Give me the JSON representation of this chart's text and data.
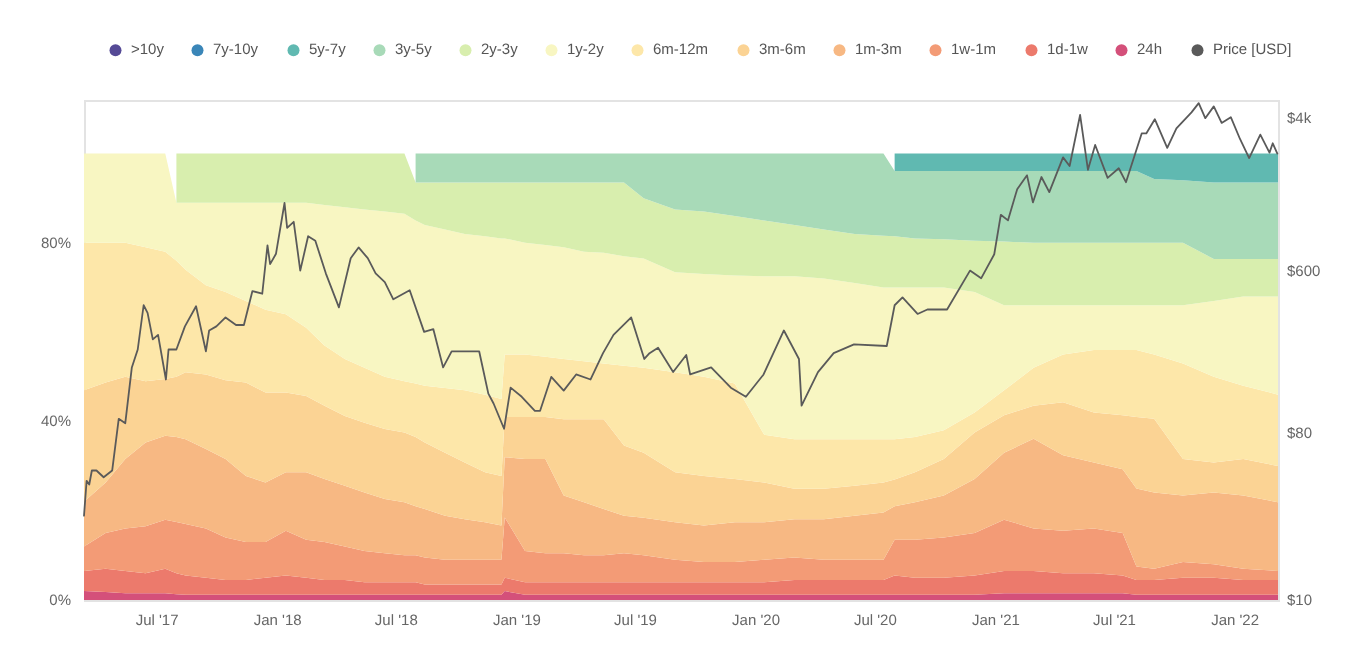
{
  "chart_data": {
    "type": "area",
    "stacked": true,
    "legend": "top",
    "log": "y2",
    "x": [
      "2017-03-13",
      "2017-04-15",
      "2017-05-15",
      "2017-06-15",
      "2017-07-15",
      "2017-08-01",
      "2017-08-15",
      "2017-09-15",
      "2017-10-15",
      "2017-11-15",
      "2017-12-15",
      "2018-01-15",
      "2018-02-15",
      "2018-03-15",
      "2018-04-15",
      "2018-05-15",
      "2018-06-15",
      "2018-07-15",
      "2018-08-01",
      "2018-08-15",
      "2018-09-15",
      "2018-10-15",
      "2018-11-15",
      "2018-12-10",
      "2018-12-15",
      "2019-01-15",
      "2019-02-15",
      "2019-03-15",
      "2019-04-15",
      "2019-05-15",
      "2019-06-15",
      "2019-07-15",
      "2019-09-01",
      "2019-10-15",
      "2019-12-01",
      "2020-01-15",
      "2020-03-01",
      "2020-04-15",
      "2020-06-01",
      "2020-07-15",
      "2020-08-01",
      "2020-09-01",
      "2020-10-15",
      "2020-12-01",
      "2021-01-15",
      "2021-03-01",
      "2021-04-15",
      "2021-06-01",
      "2021-07-15",
      "2021-08-05",
      "2021-09-01",
      "2021-10-15",
      "2021-12-01",
      "2022-01-15",
      "2022-03-09"
    ],
    "xlim": [
      "2017-03-13",
      "2022-03-09"
    ],
    "xticks": [
      {
        "value": "2017-07-01",
        "label": "Jul '17"
      },
      {
        "value": "2018-01-01",
        "label": "Jan '18"
      },
      {
        "value": "2018-07-01",
        "label": "Jul '18"
      },
      {
        "value": "2019-01-01",
        "label": "Jan '19"
      },
      {
        "value": "2019-07-01",
        "label": "Jul '19"
      },
      {
        "value": "2020-01-01",
        "label": "Jan '20"
      },
      {
        "value": "2020-07-01",
        "label": "Jul '20"
      },
      {
        "value": "2021-01-01",
        "label": "Jan '21"
      },
      {
        "value": "2021-07-01",
        "label": "Jul '21"
      },
      {
        "value": "2022-01-01",
        "label": "Jan '22"
      }
    ],
    "ylim": [
      0,
      112
    ],
    "yticks": [
      {
        "value": 0,
        "label": "0%"
      },
      {
        "value": 40,
        "label": "40%"
      },
      {
        "value": 80,
        "label": "80%"
      }
    ],
    "y2lim": [
      10,
      5000
    ],
    "y2ticks": [
      {
        "value": 10,
        "label": "$10"
      },
      {
        "value": 80,
        "label": "$80"
      },
      {
        "value": 600,
        "label": "$600"
      },
      {
        "value": 4000,
        "label": "$4k"
      }
    ],
    "series": [
      {
        "name": "24h",
        "color": "#d4507a",
        "values": [
          2,
          1.8,
          1.5,
          1.5,
          1.5,
          1.3,
          1.2,
          1.2,
          1.2,
          1.2,
          1.2,
          1.2,
          1.2,
          1.2,
          1.2,
          1.2,
          1.2,
          1.2,
          1.2,
          1.2,
          1.2,
          1.2,
          1.2,
          1.2,
          2,
          1.2,
          1.2,
          1.2,
          1.2,
          1.2,
          1.2,
          1.2,
          1.2,
          1.2,
          1.2,
          1.2,
          1.2,
          1.2,
          1.2,
          1.2,
          1.2,
          1.2,
          1.2,
          1.2,
          1.5,
          1.5,
          1.5,
          1.5,
          1.5,
          1.2,
          1.2,
          1.2,
          1.2,
          1.2,
          1.2
        ]
      },
      {
        "name": "1d-1w",
        "color": "#ec7a6c",
        "values": [
          4.5,
          5.2,
          5,
          4.5,
          5.5,
          4.7,
          4.3,
          3.8,
          3.3,
          3.3,
          3.8,
          4.3,
          3.8,
          3.3,
          3.3,
          2.8,
          2.8,
          2.8,
          2.8,
          2.3,
          2.3,
          2.3,
          2.3,
          2.3,
          3,
          2.8,
          2.8,
          2.8,
          2.8,
          2.8,
          2.8,
          2.8,
          2.8,
          2.8,
          2.8,
          2.8,
          3.3,
          3.3,
          3.3,
          3.3,
          4.3,
          3.8,
          3.8,
          4.3,
          5,
          5,
          4.5,
          4.5,
          4,
          3.3,
          3.3,
          3.8,
          3.8,
          3.3,
          3.3
        ]
      },
      {
        "name": "1w-1m",
        "color": "#f39b76",
        "values": [
          5.5,
          8,
          9.5,
          10.5,
          11,
          11.5,
          11.5,
          11,
          9.5,
          8.5,
          8,
          10,
          8.5,
          8.5,
          7.5,
          7,
          6.5,
          6,
          6,
          6,
          5.5,
          5.5,
          5.5,
          5.5,
          13.5,
          7,
          6.5,
          6.5,
          6,
          6,
          6.5,
          6,
          5,
          4.5,
          4.5,
          5,
          5,
          4.5,
          4.5,
          4.5,
          8,
          8.5,
          9,
          9.5,
          11.5,
          9.5,
          9.5,
          10,
          9.5,
          3,
          2.5,
          3.5,
          3,
          2.5,
          2
        ]
      },
      {
        "name": "1m-3m",
        "color": "#f7b883",
        "values": [
          10,
          11.3,
          15.6,
          18.8,
          18.8,
          19,
          19,
          17.8,
          17.6,
          14.8,
          13.3,
          13.1,
          15.1,
          14.1,
          13.6,
          13.1,
          12.1,
          11.9,
          11,
          10.9,
          9.9,
          9.1,
          8.4,
          7.7,
          13.5,
          20.6,
          21.1,
          12.9,
          11.9,
          10.4,
          8.4,
          8.4,
          8.4,
          8.2,
          8.9,
          8.4,
          8.6,
          9.1,
          9.9,
          10.6,
          7.5,
          8.4,
          9.4,
          12.1,
          15,
          20.1,
          16.9,
          14.8,
          14.3,
          17.5,
          17.1,
          14.9,
          16.1,
          16.4,
          15.4
        ]
      },
      {
        "name": "3m-6m",
        "color": "#fbd394",
        "values": [
          25,
          22.4,
          18.4,
          13.7,
          12.7,
          13.5,
          15,
          16.7,
          17.6,
          20.9,
          20.2,
          17.9,
          17.1,
          16.4,
          15.6,
          15.6,
          15.7,
          15.6,
          15.5,
          14.9,
          14.1,
          12.7,
          11.2,
          11.1,
          9,
          9.4,
          9.4,
          17.1,
          18.6,
          20.1,
          15.7,
          14.6,
          11.2,
          11.1,
          9.7,
          8.9,
          6.8,
          6.8,
          6.7,
          6.7,
          6,
          6.7,
          8.2,
          10.4,
          8.4,
          7.4,
          11.9,
          11.2,
          12.1,
          16,
          16.5,
          8.2,
          6.7,
          8.2,
          8.1
        ]
      },
      {
        "name": "6m-12m",
        "color": "#fde7a9",
        "values": [
          33,
          31.3,
          30,
          30,
          28.5,
          26,
          23,
          20,
          19.8,
          18.3,
          18.5,
          17.5,
          15.3,
          13.5,
          12.8,
          12.3,
          11.7,
          11.5,
          12,
          12.7,
          14.5,
          16.2,
          17.4,
          17.2,
          14,
          14,
          13.5,
          13.5,
          13,
          12.5,
          17.9,
          19,
          22.4,
          22.2,
          21.4,
          10.7,
          11.1,
          11.1,
          10.4,
          9.7,
          9,
          7.9,
          6.4,
          4.5,
          5.6,
          8.5,
          10.7,
          14,
          14.6,
          15,
          14.4,
          21.4,
          19.2,
          16.4,
          16
        ]
      },
      {
        "name": "1y-2y",
        "color": "#f8f6c2",
        "values": [
          20,
          20,
          20,
          21,
          22,
          13,
          15,
          18.5,
          20,
          22,
          24,
          25,
          28,
          31.5,
          34,
          35.5,
          37,
          37.5,
          36.5,
          36,
          35.5,
          35,
          35.5,
          36,
          26,
          25,
          25,
          25,
          24.5,
          24.8,
          24.5,
          24.5,
          22.4,
          23,
          24.2,
          35.5,
          36.5,
          36,
          35,
          34,
          34,
          33.5,
          32,
          27,
          19,
          14,
          11,
          10,
          10,
          10,
          11,
          13,
          17,
          20,
          22
        ]
      },
      {
        "name": "2y-3y",
        "color": "#d8eeae",
        "values": [
          null,
          null,
          null,
          null,
          null,
          11,
          11,
          11,
          11,
          11,
          11,
          11,
          11,
          11.5,
          12,
          12.5,
          13,
          13.5,
          8.5,
          9.5,
          10.5,
          11.5,
          12,
          12.5,
          12.5,
          13.5,
          14,
          14.5,
          15.5,
          15.7,
          16.5,
          13.5,
          14.1,
          14,
          13.3,
          12.5,
          11.5,
          11,
          11,
          11.6,
          11.5,
          11,
          10.8,
          11.5,
          14.3,
          14,
          14,
          14,
          14,
          14,
          14,
          14,
          9.4,
          8.4,
          8.4
        ]
      },
      {
        "name": "3y-5y",
        "color": "#a8dab8",
        "values": [
          null,
          null,
          null,
          null,
          null,
          null,
          null,
          null,
          null,
          null,
          null,
          null,
          null,
          null,
          null,
          null,
          null,
          null,
          6.5,
          6.5,
          6.5,
          6.5,
          6.5,
          6.5,
          6.5,
          6.5,
          6.5,
          6.5,
          6.5,
          6.5,
          6.5,
          10,
          12.5,
          13,
          14,
          15,
          16,
          17,
          18,
          18.4,
          14.6,
          15.1,
          15.3,
          15.6,
          15.8,
          16.1,
          16.1,
          16.1,
          16.1,
          16.1,
          14.3,
          14,
          17.1,
          17.1,
          17.1
        ]
      },
      {
        "name": "5y-7y",
        "color": "#60b9b1",
        "values": [
          null,
          null,
          null,
          null,
          null,
          null,
          null,
          null,
          null,
          null,
          null,
          null,
          null,
          null,
          null,
          null,
          null,
          null,
          null,
          null,
          null,
          null,
          null,
          null,
          null,
          null,
          null,
          null,
          null,
          null,
          null,
          null,
          null,
          null,
          null,
          null,
          null,
          null,
          null,
          null,
          3.9,
          3.9,
          3.9,
          3.9,
          3.9,
          3.9,
          3.9,
          3.9,
          3.9,
          3.9,
          5.7,
          6,
          6.5,
          6.5,
          6.5
        ]
      },
      {
        "name": "7y-10y",
        "color": "#3a86b8",
        "values": [
          null,
          null,
          null,
          null,
          null,
          null,
          null,
          null,
          null,
          null,
          null,
          null,
          null,
          null,
          null,
          null,
          null,
          null,
          null,
          null,
          null,
          null,
          null,
          null,
          null,
          null,
          null,
          null,
          null,
          null,
          null,
          null,
          null,
          null,
          null,
          null,
          null,
          null,
          null,
          null,
          null,
          null,
          null,
          null,
          null,
          null,
          null,
          null,
          null,
          null,
          null,
          null,
          null,
          null,
          null
        ]
      },
      {
        "name": ">10y",
        "color": "#554a96",
        "values": [
          null,
          null,
          null,
          null,
          null,
          null,
          null,
          null,
          null,
          null,
          null,
          null,
          null,
          null,
          null,
          null,
          null,
          null,
          null,
          null,
          null,
          null,
          null,
          null,
          null,
          null,
          null,
          null,
          null,
          null,
          null,
          null,
          null,
          null,
          null,
          null,
          null,
          null,
          null,
          null,
          null,
          null,
          null,
          null,
          null,
          null,
          null,
          null,
          null,
          null,
          null,
          null,
          null,
          null,
          null
        ]
      },
      {
        "name": "Price [USD]",
        "type": "line",
        "axis": "y2",
        "color": "#5a5a5a",
        "x": [
          "2017-03-13",
          "2017-03-17",
          "2017-03-21",
          "2017-03-25",
          "2017-04-01",
          "2017-04-12",
          "2017-04-25",
          "2017-05-05",
          "2017-05-15",
          "2017-05-25",
          "2017-06-03",
          "2017-06-12",
          "2017-06-18",
          "2017-06-26",
          "2017-07-04",
          "2017-07-16",
          "2017-07-20",
          "2017-08-01",
          "2017-08-14",
          "2017-08-31",
          "2017-09-15",
          "2017-09-20",
          "2017-10-01",
          "2017-10-15",
          "2017-10-31",
          "2017-11-12",
          "2017-11-25",
          "2017-12-10",
          "2017-12-18",
          "2017-12-22",
          "2017-12-31",
          "2018-01-13",
          "2018-01-17",
          "2018-01-27",
          "2018-02-06",
          "2018-02-18",
          "2018-03-01",
          "2018-03-17",
          "2018-04-06",
          "2018-04-24",
          "2018-05-06",
          "2018-05-20",
          "2018-06-01",
          "2018-06-15",
          "2018-06-28",
          "2018-07-23",
          "2018-08-14",
          "2018-08-28",
          "2018-09-12",
          "2018-09-25",
          "2018-10-15",
          "2018-11-06",
          "2018-11-20",
          "2018-11-28",
          "2018-12-14",
          "2018-12-24",
          "2019-01-10",
          "2019-01-30",
          "2019-02-07",
          "2019-02-24",
          "2019-03-15",
          "2019-04-03",
          "2019-04-25",
          "2019-05-14",
          "2019-05-30",
          "2019-06-26",
          "2019-07-16",
          "2019-07-24",
          "2019-08-06",
          "2019-08-29",
          "2019-09-18",
          "2019-09-24",
          "2019-10-26",
          "2019-11-25",
          "2019-12-18",
          "2020-01-14",
          "2020-02-14",
          "2020-03-08",
          "2020-03-12",
          "2020-04-06",
          "2020-04-30",
          "2020-05-31",
          "2020-07-20",
          "2020-08-01",
          "2020-08-13",
          "2020-09-05",
          "2020-09-20",
          "2020-10-20",
          "2020-11-24",
          "2020-12-11",
          "2020-12-31",
          "2021-01-10",
          "2021-01-21",
          "2021-02-04",
          "2021-02-19",
          "2021-02-28",
          "2021-03-13",
          "2021-03-25",
          "2021-04-15",
          "2021-04-25",
          "2021-05-11",
          "2021-05-23",
          "2021-06-03",
          "2021-06-22",
          "2021-07-09",
          "2021-07-20",
          "2021-08-13",
          "2021-08-20",
          "2021-09-02",
          "2021-09-21",
          "2021-10-05",
          "2021-10-28",
          "2021-11-08",
          "2021-11-18",
          "2021-12-01",
          "2021-12-13",
          "2021-12-27",
          "2022-01-10",
          "2022-01-24",
          "2022-02-10",
          "2022-02-24",
          "2022-03-01",
          "2022-03-08"
        ],
        "values": [
          28.5,
          44,
          42,
          50,
          50,
          46,
          50,
          95,
          90,
          180,
          225,
          390,
          355,
          255,
          270,
          155,
          225,
          225,
          300,
          385,
          220,
          285,
          300,
          335,
          305,
          305,
          465,
          450,
          820,
          650,
          740,
          1390,
          1020,
          1100,
          600,
          920,
          870,
          580,
          380,
          700,
          800,
          700,
          580,
          520,
          420,
          470,
          280,
          290,
          180,
          220,
          220,
          220,
          130,
          115,
          84,
          140,
          125,
          105,
          105,
          160,
          135,
          165,
          155,
          215,
          270,
          335,
          200,
          215,
          230,
          170,
          210,
          165,
          180,
          140,
          125,
          165,
          285,
          200,
          112,
          170,
          215,
          240,
          235,
          390,
          430,
          350,
          370,
          370,
          600,
          545,
          735,
          1200,
          1120,
          1650,
          1960,
          1400,
          1920,
          1590,
          2450,
          2200,
          4150,
          2100,
          2860,
          1900,
          2140,
          1800,
          3300,
          3300,
          3940,
          2760,
          3510,
          4290,
          4810,
          3990,
          4620,
          3760,
          4040,
          3080,
          2430,
          3250,
          2600,
          2920,
          2570
        ]
      }
    ]
  }
}
